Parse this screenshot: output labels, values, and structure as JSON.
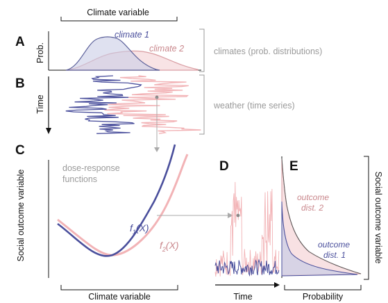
{
  "figure": {
    "top_axis_label": "Climate variable",
    "panels": {
      "A": {
        "letter": "A",
        "ylabel": "Prob.",
        "series_1_label": "climate 1",
        "series_2_label": "climate 2",
        "bracket_label": "climates (prob. distributions)"
      },
      "B": {
        "letter": "B",
        "ylabel": "Time",
        "bracket_label": "weather (time series)"
      },
      "C": {
        "letter": "C",
        "ylabel": "Social outcome variable",
        "xlabel": "Climate variable",
        "annotation_line1": "dose-response",
        "annotation_line2": "functions",
        "f1_label": "f",
        "f1_sub": "1",
        "f1_arg": "(X)",
        "f2_label": "f",
        "f2_sub": "2",
        "f2_arg": "(X)"
      },
      "D": {
        "letter": "D",
        "xlabel": "Time"
      },
      "E": {
        "letter": "E",
        "xlabel": "Probability",
        "ylabel_right": "Social outcome variable",
        "outcome2_line1": "outcome",
        "outcome2_line2": "dist. 2",
        "outcome1_line1": "outcome",
        "outcome1_line2": "dist. 1"
      }
    },
    "colors": {
      "climate_1": "#4a4f9c",
      "climate_2": "#f2b3b6",
      "climate_1_fill": "#c9cde6",
      "climate_2_fill": "#f6d9dc",
      "label_1": "#4a4f9c",
      "label_2": "#c9878c",
      "gray": "#9a9a9a"
    }
  }
}
